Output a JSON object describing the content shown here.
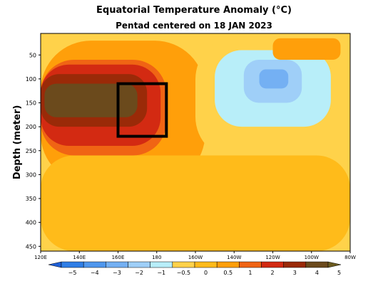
{
  "chart_data": {
    "type": "heatmap",
    "title": "Equatorial Temperature Anomaly (°C)",
    "subtitle": "Pentad centered on 18 JAN 2023",
    "ylabel": "Depth (meter)",
    "xlabel": "",
    "x_ticks": [
      "120E",
      "140E",
      "160E",
      "180",
      "160W",
      "140W",
      "120W",
      "100W",
      "80W"
    ],
    "x_tick_lon": [
      120,
      140,
      160,
      180,
      200,
      220,
      240,
      260,
      280
    ],
    "xlim": [
      120,
      280
    ],
    "y_ticks": [
      "50",
      "100",
      "150",
      "200",
      "250",
      "300",
      "350",
      "400",
      "450"
    ],
    "y_tick_values": [
      50,
      100,
      150,
      200,
      250,
      300,
      350,
      400,
      450
    ],
    "ylim": [
      5,
      460
    ],
    "y_inverted": true,
    "colorbar": {
      "tick_labels": [
        "−5",
        "−4",
        "−3",
        "−2",
        "−1",
        "−0.5",
        "0",
        "0.5",
        "1",
        "2",
        "3",
        "4",
        "5"
      ],
      "levels": [
        -5,
        -4,
        -3,
        -2,
        -1,
        -0.5,
        0,
        0.5,
        1,
        2,
        3,
        4,
        5
      ],
      "colors": [
        "#1e5fd6",
        "#2f7ee6",
        "#4f97ee",
        "#74b0f3",
        "#9fcff8",
        "#b8eef9",
        "#ffd24a",
        "#ffbb1a",
        "#ff9f0a",
        "#f06414",
        "#d32a12",
        "#9a2a08",
        "#6b4a1c",
        "#6b5a1e"
      ]
    },
    "box": {
      "lon": [
        160,
        185
      ],
      "depth": [
        110,
        220
      ]
    },
    "anomaly_regions": [
      {
        "level": 0.5,
        "lon": [
          120,
          205
        ],
        "depth": [
          20,
          320
        ]
      },
      {
        "level": 1,
        "lon": [
          120,
          185
        ],
        "depth": [
          60,
          260
        ]
      },
      {
        "level": 2,
        "lon": [
          120,
          182
        ],
        "depth": [
          70,
          240
        ]
      },
      {
        "level": 3,
        "lon": [
          120,
          175
        ],
        "depth": [
          90,
          200
        ]
      },
      {
        "level": 4,
        "lon": [
          122,
          170
        ],
        "depth": [
          110,
          180
        ]
      },
      {
        "level": -0.5,
        "lon": [
          200,
          280
        ],
        "depth": [
          10,
          270
        ]
      },
      {
        "level": -1,
        "lon": [
          210,
          270
        ],
        "depth": [
          40,
          200
        ]
      },
      {
        "level": -2,
        "lon": [
          225,
          255
        ],
        "depth": [
          60,
          150
        ]
      },
      {
        "level": -3,
        "lon": [
          233,
          248
        ],
        "depth": [
          80,
          120
        ]
      },
      {
        "level": 0.5,
        "lon": [
          240,
          275
        ],
        "depth": [
          15,
          60
        ]
      },
      {
        "level": 0,
        "lon": [
          120,
          280
        ],
        "depth": [
          260,
          460
        ]
      }
    ]
  }
}
